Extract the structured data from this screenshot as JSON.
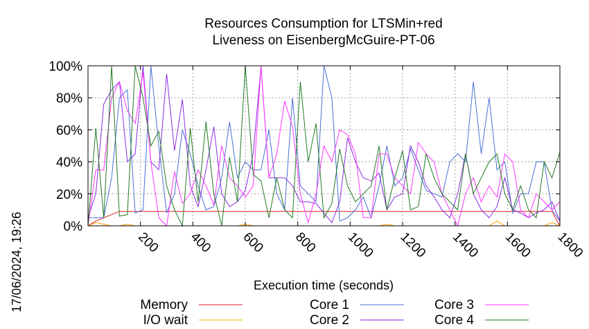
{
  "chart_data": {
    "type": "line",
    "title": [
      "Resources Consumption for LTSMin+red",
      "Liveness on EisenbergMcGuire-PT-06"
    ],
    "xlabel": "Execution time (seconds)",
    "ylabel": "",
    "side_label": "17/06/2024, 19:26",
    "xlim": [
      0,
      1800
    ],
    "ylim": [
      0,
      100
    ],
    "x_ticks": [
      200,
      400,
      600,
      800,
      1000,
      1200,
      1400,
      1600,
      1800
    ],
    "x_tick_labels": [
      "200",
      "400",
      "600",
      "800",
      "1000",
      "1200",
      "1400",
      "1600",
      "1800"
    ],
    "y_ticks": [
      0,
      20,
      40,
      60,
      80,
      100
    ],
    "y_tick_labels": [
      "0%",
      "20%",
      "40%",
      "60%",
      "80%",
      "100%"
    ],
    "grid": true,
    "legend_position": "bottom",
    "x": [
      0,
      30,
      60,
      90,
      120,
      150,
      180,
      210,
      240,
      270,
      300,
      330,
      360,
      390,
      420,
      450,
      480,
      510,
      540,
      570,
      600,
      630,
      660,
      690,
      720,
      750,
      780,
      810,
      840,
      870,
      900,
      930,
      960,
      990,
      1020,
      1050,
      1080,
      1110,
      1140,
      1170,
      1200,
      1230,
      1260,
      1290,
      1320,
      1350,
      1380,
      1410,
      1440,
      1470,
      1500,
      1530,
      1560,
      1590,
      1620,
      1650,
      1680,
      1710,
      1740,
      1770,
      1800
    ],
    "series": [
      {
        "name": "Memory",
        "color": "#e41a1c",
        "values": [
          0,
          3,
          5,
          7,
          9,
          9,
          9,
          9,
          9,
          9,
          9,
          9,
          9,
          9,
          9,
          9,
          9,
          9,
          9,
          9,
          9,
          9,
          9,
          9,
          9,
          9,
          9,
          9,
          9,
          9,
          9,
          9,
          9,
          9,
          9,
          9,
          9,
          9,
          9,
          9,
          9,
          9,
          9,
          9,
          9,
          9,
          9,
          9,
          9,
          9,
          9,
          9,
          9,
          9,
          9,
          9,
          9,
          9,
          9,
          9,
          0
        ]
      },
      {
        "name": "I/O wait",
        "color": "#ff9f00",
        "values": [
          0,
          2,
          1,
          0,
          0,
          1,
          0,
          0,
          0,
          0,
          0,
          0,
          0,
          0,
          0,
          0,
          0,
          0,
          0,
          0,
          1,
          0,
          0,
          0,
          0,
          0,
          0,
          0,
          0,
          0,
          0,
          0,
          0,
          0,
          0,
          0,
          0,
          0,
          1,
          0,
          0,
          0,
          0,
          0,
          0,
          0,
          0,
          0,
          0,
          0,
          0,
          0,
          3,
          0,
          0,
          0,
          0,
          0,
          0,
          2,
          0
        ]
      },
      {
        "name": "Core 1",
        "color": "#4a6fd4",
        "values": [
          5,
          5,
          5,
          30,
          80,
          85,
          8,
          10,
          100,
          50,
          8,
          20,
          60,
          45,
          25,
          10,
          12,
          30,
          65,
          30,
          40,
          35,
          35,
          60,
          20,
          10,
          80,
          25,
          20,
          15,
          100,
          80,
          3,
          5,
          10,
          18,
          5,
          25,
          50,
          25,
          30,
          48,
          35,
          22,
          20,
          18,
          40,
          45,
          40,
          90,
          45,
          80,
          35,
          40,
          8,
          20,
          20,
          40,
          40,
          10,
          3
        ]
      },
      {
        "name": "Core 2",
        "color": "#8a2be2",
        "values": [
          5,
          20,
          76,
          85,
          90,
          40,
          45,
          100,
          40,
          35,
          95,
          47,
          79,
          25,
          12,
          35,
          62,
          20,
          12,
          15,
          22,
          45,
          100,
          30,
          30,
          30,
          25,
          15,
          15,
          14,
          8,
          2,
          15,
          55,
          40,
          30,
          28,
          33,
          10,
          18,
          20,
          50,
          40,
          25,
          18,
          10,
          5,
          20,
          45,
          20,
          10,
          5,
          12,
          30,
          10,
          8,
          5,
          8,
          10,
          15,
          3
        ]
      },
      {
        "name": "Core 3",
        "color": "#ff33ff",
        "values": [
          0,
          35,
          35,
          80,
          90,
          72,
          64,
          96,
          40,
          5,
          0,
          34,
          14,
          20,
          35,
          25,
          13,
          50,
          30,
          25,
          18,
          25,
          100,
          30,
          45,
          78,
          62,
          20,
          2,
          20,
          50,
          40,
          60,
          57,
          45,
          5,
          5,
          45,
          45,
          30,
          25,
          20,
          52,
          45,
          40,
          20,
          10,
          0,
          20,
          30,
          15,
          25,
          18,
          45,
          40,
          10,
          5,
          20,
          15,
          10,
          15
        ]
      },
      {
        "name": "Core 4",
        "color": "#207a20",
        "values": [
          0,
          61,
          5,
          100,
          6,
          7,
          100,
          80,
          50,
          59,
          25,
          10,
          0,
          61,
          15,
          65,
          20,
          0,
          43,
          15,
          100,
          32,
          28,
          5,
          30,
          10,
          5,
          90,
          40,
          64,
          5,
          14,
          48,
          25,
          15,
          20,
          25,
          50,
          10,
          30,
          47,
          10,
          12,
          45,
          30,
          20,
          15,
          10,
          45,
          20,
          30,
          40,
          45,
          20,
          10,
          25,
          10,
          5,
          40,
          30,
          46
        ]
      }
    ]
  }
}
